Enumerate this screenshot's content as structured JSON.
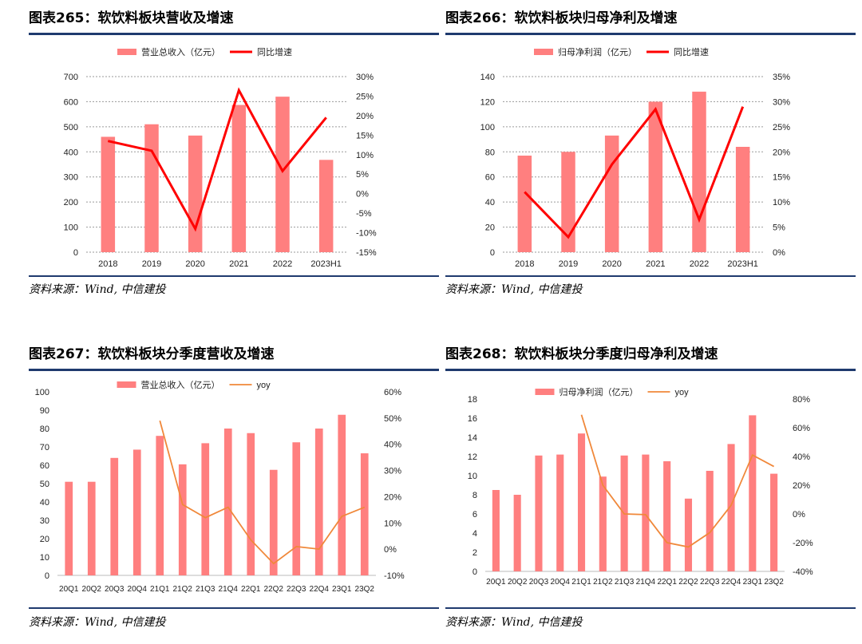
{
  "chart_data": [
    {
      "type": "bar",
      "title_prefix": "图表265：",
      "title": "软饮料板块营收及增速",
      "categories": [
        "2018",
        "2019",
        "2020",
        "2021",
        "2022",
        "2023H1"
      ],
      "series": [
        {
          "name": "营业总收入（亿元）",
          "kind": "bar",
          "axis": "left",
          "color": "#ff7f7f",
          "values": [
            460,
            510,
            465,
            587,
            620,
            368
          ]
        },
        {
          "name": "同比增速",
          "kind": "line",
          "axis": "right",
          "color": "#ff0000",
          "values": [
            13.5,
            11.0,
            -9.0,
            26.5,
            5.8,
            19.5
          ]
        }
      ],
      "y_left": {
        "min": 0,
        "max": 700,
        "ticks": [
          "0",
          "100",
          "200",
          "300",
          "400",
          "500",
          "600",
          "700"
        ]
      },
      "y_right": {
        "min": -15,
        "max": 30,
        "ticks": [
          "-15%",
          "-10%",
          "-5%",
          "0%",
          "5%",
          "10%",
          "15%",
          "20%",
          "25%",
          "30%"
        ]
      },
      "grid": true,
      "legend": "top-center",
      "source": "资料来源：Wind, 中信建投"
    },
    {
      "type": "bar",
      "title_prefix": "图表266：",
      "title": "软饮料板块归母净利及增速",
      "categories": [
        "2018",
        "2019",
        "2020",
        "2021",
        "2022",
        "2023H1"
      ],
      "series": [
        {
          "name": "归母净利润（亿元）",
          "kind": "bar",
          "axis": "left",
          "color": "#ff7f7f",
          "values": [
            77,
            80,
            93,
            120,
            128,
            84
          ]
        },
        {
          "name": "同比增速",
          "kind": "line",
          "axis": "right",
          "color": "#ff0000",
          "values": [
            12.0,
            3.0,
            17.5,
            28.5,
            6.5,
            29.0
          ]
        }
      ],
      "y_left": {
        "min": 0,
        "max": 140,
        "ticks": [
          "0",
          "20",
          "40",
          "60",
          "80",
          "100",
          "120",
          "140"
        ]
      },
      "y_right": {
        "min": 0,
        "max": 35,
        "ticks": [
          "0%",
          "5%",
          "10%",
          "15%",
          "20%",
          "25%",
          "30%",
          "35%"
        ]
      },
      "grid": true,
      "legend": "top-center",
      "source": "资料来源：Wind, 中信建投"
    },
    {
      "type": "bar",
      "title_prefix": "图表267：",
      "title": "软饮料板块分季度营收及增速",
      "categories": [
        "20Q1",
        "20Q2",
        "20Q3",
        "20Q4",
        "21Q1",
        "21Q2",
        "21Q3",
        "21Q4",
        "22Q1",
        "22Q2",
        "22Q3",
        "22Q4",
        "23Q1",
        "23Q2"
      ],
      "series": [
        {
          "name": "营业总收入（亿元）",
          "kind": "bar",
          "axis": "left",
          "color": "#ff7f7f",
          "values": [
            51,
            51,
            64,
            68.5,
            76,
            60.5,
            72,
            80,
            77.5,
            57.5,
            72.5,
            80,
            87.5,
            66.5
          ]
        },
        {
          "name": "yoy",
          "kind": "line",
          "axis": "right",
          "color": "#f0883a",
          "values": [
            null,
            null,
            null,
            null,
            49,
            17,
            12,
            16,
            3.5,
            -5.5,
            1,
            0,
            12.5,
            16
          ]
        }
      ],
      "y_left": {
        "min": 0,
        "max": 100,
        "ticks": [
          "0",
          "10",
          "20",
          "30",
          "40",
          "50",
          "60",
          "70",
          "80",
          "90",
          "100"
        ]
      },
      "y_right": {
        "min": -10,
        "max": 60,
        "ticks": [
          "-10%",
          "0%",
          "10%",
          "20%",
          "30%",
          "40%",
          "50%",
          "60%"
        ]
      },
      "grid": false,
      "legend": "top-center",
      "source": "资料来源：Wind, 中信建投"
    },
    {
      "type": "bar",
      "title_prefix": "图表268：",
      "title": "软饮料板块分季度归母净利及增速",
      "categories": [
        "20Q1",
        "20Q2",
        "20Q3",
        "20Q4",
        "21Q1",
        "21Q2",
        "21Q3",
        "21Q4",
        "22Q1",
        "22Q2",
        "22Q3",
        "22Q4",
        "23Q1",
        "23Q2"
      ],
      "series": [
        {
          "name": "归母净利润（亿元）",
          "kind": "bar",
          "axis": "left",
          "color": "#ff7f7f",
          "values": [
            8.5,
            8.0,
            12.1,
            12.2,
            14.4,
            9.9,
            12.1,
            12.2,
            11.5,
            7.6,
            10.5,
            13.3,
            16.3,
            10.2
          ]
        },
        {
          "name": "yoy",
          "kind": "line",
          "axis": "right",
          "color": "#f0883a",
          "values": [
            null,
            null,
            null,
            null,
            69,
            20,
            0,
            -0.5,
            -20,
            -23,
            -13,
            6,
            41,
            33
          ]
        }
      ],
      "y_left": {
        "min": 0,
        "max": 18,
        "ticks": [
          "0",
          "2",
          "4",
          "6",
          "8",
          "10",
          "12",
          "14",
          "16",
          "18"
        ]
      },
      "y_right": {
        "min": -40,
        "max": 80,
        "ticks": [
          "-40%",
          "-20%",
          "0%",
          "20%",
          "40%",
          "60%",
          "80%"
        ]
      },
      "grid": false,
      "legend": "top-center",
      "source": "资料来源：Wind, 中信建投"
    }
  ]
}
